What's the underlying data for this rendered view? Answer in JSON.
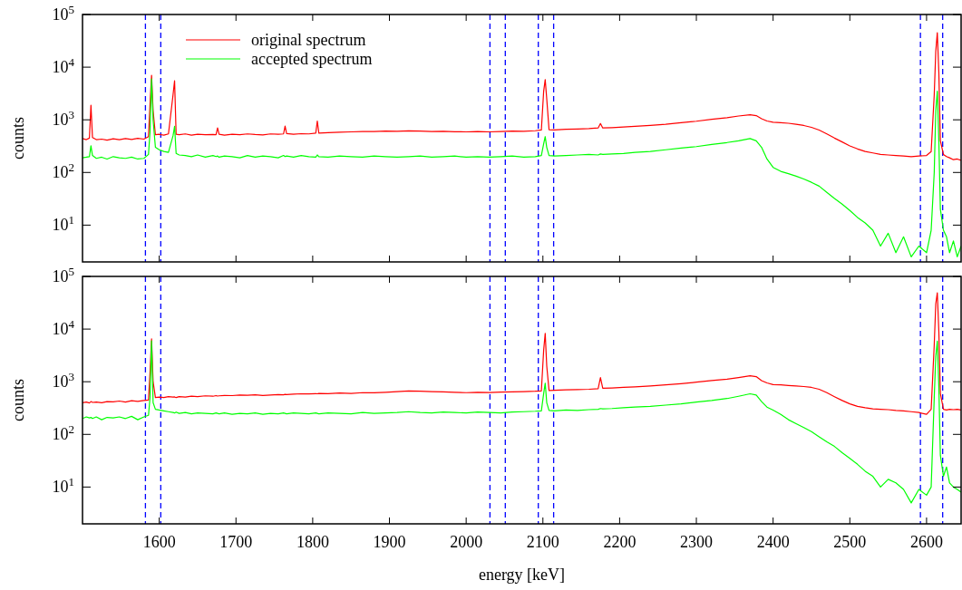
{
  "chart_data": [
    {
      "type": "line",
      "ylabel": "counts",
      "log": "y",
      "legend": "top left",
      "tick_labels": "y",
      "grid": false,
      "x": [
        1500,
        1505,
        1509,
        1511,
        1513,
        1518,
        1525,
        1532,
        1540,
        1548,
        1556,
        1564,
        1572,
        1580,
        1586,
        1588,
        1590,
        1592,
        1595,
        1600,
        1606,
        1612,
        1618,
        1620,
        1622,
        1626,
        1634,
        1642,
        1650,
        1660,
        1670,
        1674,
        1676,
        1678,
        1685,
        1695,
        1705,
        1715,
        1725,
        1735,
        1745,
        1755,
        1762,
        1764,
        1766,
        1775,
        1785,
        1795,
        1804,
        1806,
        1808,
        1820,
        1835,
        1850,
        1865,
        1880,
        1895,
        1910,
        1925,
        1940,
        1955,
        1970,
        1985,
        2000,
        2015,
        2030,
        2045,
        2060,
        2075,
        2090,
        2098,
        2101,
        2103,
        2105,
        2108,
        2115,
        2130,
        2145,
        2160,
        2172,
        2175,
        2178,
        2190,
        2205,
        2220,
        2240,
        2260,
        2280,
        2300,
        2320,
        2340,
        2355,
        2370,
        2378,
        2385,
        2392,
        2400,
        2410,
        2420,
        2430,
        2440,
        2450,
        2460,
        2470,
        2480,
        2490,
        2500,
        2510,
        2520,
        2530,
        2540,
        2550,
        2560,
        2570,
        2580,
        2590,
        2600,
        2606,
        2610,
        2612,
        2614,
        2616,
        2618,
        2622,
        2626,
        2630,
        2635,
        2640,
        2645
      ],
      "series": [
        {
          "name": "original spectrum",
          "color": "#ff0000",
          "values": [
            440,
            420,
            450,
            1900,
            460,
            420,
            430,
            410,
            435,
            420,
            440,
            425,
            445,
            430,
            480,
            2000,
            7000,
            1500,
            520,
            530,
            510,
            540,
            3000,
            5500,
            530,
            520,
            540,
            510,
            530,
            520,
            525,
            520,
            700,
            530,
            510,
            530,
            520,
            540,
            525,
            515,
            540,
            530,
            540,
            760,
            550,
            530,
            545,
            540,
            560,
            950,
            560,
            570,
            580,
            590,
            600,
            600,
            610,
            605,
            615,
            610,
            600,
            605,
            595,
            590,
            600,
            590,
            600,
            610,
            605,
            620,
            640,
            3500,
            5800,
            2500,
            650,
            640,
            660,
            670,
            680,
            700,
            850,
            700,
            710,
            730,
            750,
            780,
            820,
            880,
            940,
            1020,
            1100,
            1180,
            1250,
            1200,
            1050,
            950,
            900,
            880,
            860,
            820,
            780,
            720,
            640,
            540,
            450,
            380,
            320,
            280,
            250,
            235,
            220,
            215,
            210,
            205,
            200,
            205,
            210,
            250,
            3000,
            20000,
            45000,
            8000,
            400,
            220,
            200,
            190,
            175,
            180,
            170
          ]
        },
        {
          "name": "accepted spectrum",
          "color": "#00ff00",
          "values": [
            190,
            195,
            200,
            320,
            210,
            185,
            195,
            180,
            200,
            190,
            185,
            195,
            180,
            185,
            220,
            600,
            6000,
            1000,
            300,
            270,
            250,
            240,
            500,
            750,
            230,
            215,
            210,
            200,
            215,
            195,
            210,
            200,
            205,
            195,
            205,
            200,
            190,
            210,
            195,
            205,
            200,
            190,
            210,
            200,
            205,
            195,
            210,
            200,
            195,
            215,
            200,
            195,
            205,
            200,
            195,
            205,
            200,
            195,
            200,
            205,
            195,
            200,
            205,
            195,
            200,
            195,
            200,
            205,
            195,
            200,
            210,
            350,
            480,
            300,
            210,
            205,
            210,
            215,
            220,
            215,
            225,
            220,
            225,
            230,
            240,
            250,
            270,
            290,
            310,
            340,
            370,
            400,
            440,
            400,
            300,
            180,
            125,
            105,
            95,
            85,
            75,
            65,
            55,
            42,
            32,
            25,
            19,
            14,
            11,
            8,
            4,
            7,
            3,
            6,
            2.5,
            4,
            3,
            8,
            100,
            1500,
            3500,
            400,
            20,
            8,
            6,
            3,
            5,
            2.5,
            4
          ]
        }
      ],
      "xlim": [
        1500,
        2645
      ],
      "xticks": [
        1600,
        1700,
        1800,
        1900,
        2000,
        2100,
        2200,
        2300,
        2400,
        2500,
        2600
      ],
      "ylim": [
        2,
        100000
      ],
      "yticks": [
        {
          "value": 10,
          "label": "10$^{1}$"
        },
        {
          "value": 100,
          "label": "10$^{2}$"
        },
        {
          "value": 1000,
          "label": "10$^{3}$"
        },
        {
          "value": 10000,
          "label": "10$^{4}$"
        },
        {
          "value": 100000,
          "label": "10$^{5}$"
        }
      ],
      "ref_lines": [
        {
          "axis": "x",
          "value": 1582,
          "color": "#0000ff",
          "line_style": "dashed"
        },
        {
          "axis": "x",
          "value": 1602,
          "color": "#0000ff",
          "line_style": "dashed"
        },
        {
          "axis": "x",
          "value": 2031,
          "color": "#0000ff",
          "line_style": "dashed"
        },
        {
          "axis": "x",
          "value": 2051,
          "color": "#0000ff",
          "line_style": "dashed"
        },
        {
          "axis": "x",
          "value": 2094,
          "color": "#0000ff",
          "line_style": "dashed"
        },
        {
          "axis": "x",
          "value": 2114,
          "color": "#0000ff",
          "line_style": "dashed"
        },
        {
          "axis": "x",
          "value": 2592,
          "color": "#0000ff",
          "line_style": "dashed"
        },
        {
          "axis": "x",
          "value": 2621,
          "color": "#0000ff",
          "line_style": "dashed"
        }
      ]
    },
    {
      "type": "line",
      "ylabel": "counts",
      "xlabel": "energy [keV]",
      "log": "y",
      "grid": false,
      "x": [
        1500,
        1505,
        1509,
        1511,
        1513,
        1518,
        1525,
        1532,
        1540,
        1548,
        1556,
        1564,
        1572,
        1580,
        1586,
        1588,
        1590,
        1592,
        1595,
        1600,
        1606,
        1612,
        1618,
        1620,
        1622,
        1626,
        1634,
        1642,
        1650,
        1660,
        1670,
        1674,
        1676,
        1678,
        1685,
        1695,
        1705,
        1715,
        1725,
        1735,
        1745,
        1755,
        1762,
        1764,
        1766,
        1775,
        1785,
        1795,
        1804,
        1806,
        1808,
        1820,
        1835,
        1850,
        1865,
        1880,
        1895,
        1910,
        1925,
        1940,
        1955,
        1970,
        1985,
        2000,
        2015,
        2030,
        2045,
        2060,
        2075,
        2090,
        2098,
        2101,
        2103,
        2105,
        2108,
        2115,
        2130,
        2145,
        2160,
        2172,
        2175,
        2178,
        2190,
        2205,
        2220,
        2240,
        2260,
        2280,
        2300,
        2320,
        2340,
        2355,
        2370,
        2378,
        2385,
        2392,
        2400,
        2410,
        2420,
        2430,
        2440,
        2450,
        2460,
        2470,
        2480,
        2490,
        2500,
        2510,
        2520,
        2530,
        2540,
        2550,
        2560,
        2570,
        2580,
        2590,
        2600,
        2606,
        2610,
        2612,
        2614,
        2616,
        2618,
        2622,
        2626,
        2630,
        2635,
        2640,
        2645
      ],
      "series": [
        {
          "color": "#ff0000",
          "values": [
            400,
            410,
            395,
            420,
            405,
            410,
            400,
            420,
            415,
            430,
            410,
            435,
            425,
            440,
            450,
            1500,
            6500,
            1000,
            500,
            510,
            500,
            520,
            510,
            515,
            500,
            520,
            510,
            530,
            520,
            540,
            530,
            545,
            535,
            540,
            550,
            545,
            560,
            555,
            565,
            550,
            560,
            570,
            565,
            575,
            570,
            580,
            590,
            585,
            595,
            590,
            600,
            595,
            610,
            600,
            620,
            615,
            630,
            650,
            670,
            660,
            650,
            640,
            630,
            620,
            630,
            625,
            635,
            640,
            650,
            660,
            670,
            4000,
            8300,
            2000,
            680,
            690,
            700,
            710,
            720,
            740,
            1200,
            750,
            760,
            780,
            800,
            830,
            870,
            920,
            980,
            1050,
            1120,
            1200,
            1300,
            1250,
            1050,
            950,
            880,
            870,
            850,
            830,
            810,
            780,
            720,
            620,
            520,
            440,
            380,
            340,
            320,
            305,
            300,
            295,
            285,
            280,
            270,
            260,
            240,
            300,
            5000,
            30000,
            49000,
            9000,
            600,
            300,
            290,
            300,
            295,
            300,
            290
          ]
        },
        {
          "color": "#00ff00",
          "values": [
            200,
            215,
            205,
            210,
            200,
            215,
            190,
            210,
            205,
            215,
            200,
            220,
            190,
            215,
            230,
            500,
            6000,
            400,
            300,
            290,
            280,
            270,
            260,
            255,
            265,
            250,
            260,
            245,
            255,
            250,
            245,
            255,
            250,
            245,
            255,
            240,
            250,
            245,
            255,
            240,
            250,
            245,
            255,
            250,
            245,
            255,
            250,
            245,
            255,
            250,
            245,
            255,
            250,
            245,
            260,
            250,
            255,
            260,
            270,
            260,
            255,
            265,
            260,
            255,
            265,
            260,
            255,
            265,
            270,
            275,
            280,
            600,
            940,
            400,
            285,
            280,
            290,
            285,
            295,
            300,
            310,
            305,
            310,
            320,
            330,
            340,
            360,
            380,
            410,
            440,
            480,
            530,
            590,
            560,
            420,
            330,
            290,
            240,
            190,
            160,
            135,
            113,
            90,
            72,
            59,
            45,
            35,
            27,
            20,
            16,
            10,
            14,
            12,
            9,
            5,
            9,
            7,
            10,
            500,
            3000,
            5900,
            800,
            40,
            16,
            24,
            12,
            10,
            9,
            8
          ]
        }
      ],
      "xlim": [
        1500,
        2645
      ],
      "xticks": [
        1600,
        1700,
        1800,
        1900,
        2000,
        2100,
        2200,
        2300,
        2400,
        2500,
        2600
      ],
      "ylim": [
        2,
        100000
      ],
      "yticks": [
        {
          "value": 10,
          "label": "10$^{1}$"
        },
        {
          "value": 100,
          "label": "10$^{2}$"
        },
        {
          "value": 1000,
          "label": "10$^{3}$"
        },
        {
          "value": 10000,
          "label": "10$^{4}$"
        },
        {
          "value": 100000,
          "label": "10$^{5}$"
        }
      ],
      "ref_lines": [
        {
          "axis": "x",
          "value": 1582,
          "color": "#0000ff",
          "line_style": "dashed"
        },
        {
          "axis": "x",
          "value": 1602,
          "color": "#0000ff",
          "line_style": "dashed"
        },
        {
          "axis": "x",
          "value": 2031,
          "color": "#0000ff",
          "line_style": "dashed"
        },
        {
          "axis": "x",
          "value": 2051,
          "color": "#0000ff",
          "line_style": "dashed"
        },
        {
          "axis": "x",
          "value": 2094,
          "color": "#0000ff",
          "line_style": "dashed"
        },
        {
          "axis": "x",
          "value": 2114,
          "color": "#0000ff",
          "line_style": "dashed"
        },
        {
          "axis": "x",
          "value": 2592,
          "color": "#0000ff",
          "line_style": "dashed"
        },
        {
          "axis": "x",
          "value": 2621,
          "color": "#0000ff",
          "line_style": "dashed"
        }
      ]
    }
  ]
}
